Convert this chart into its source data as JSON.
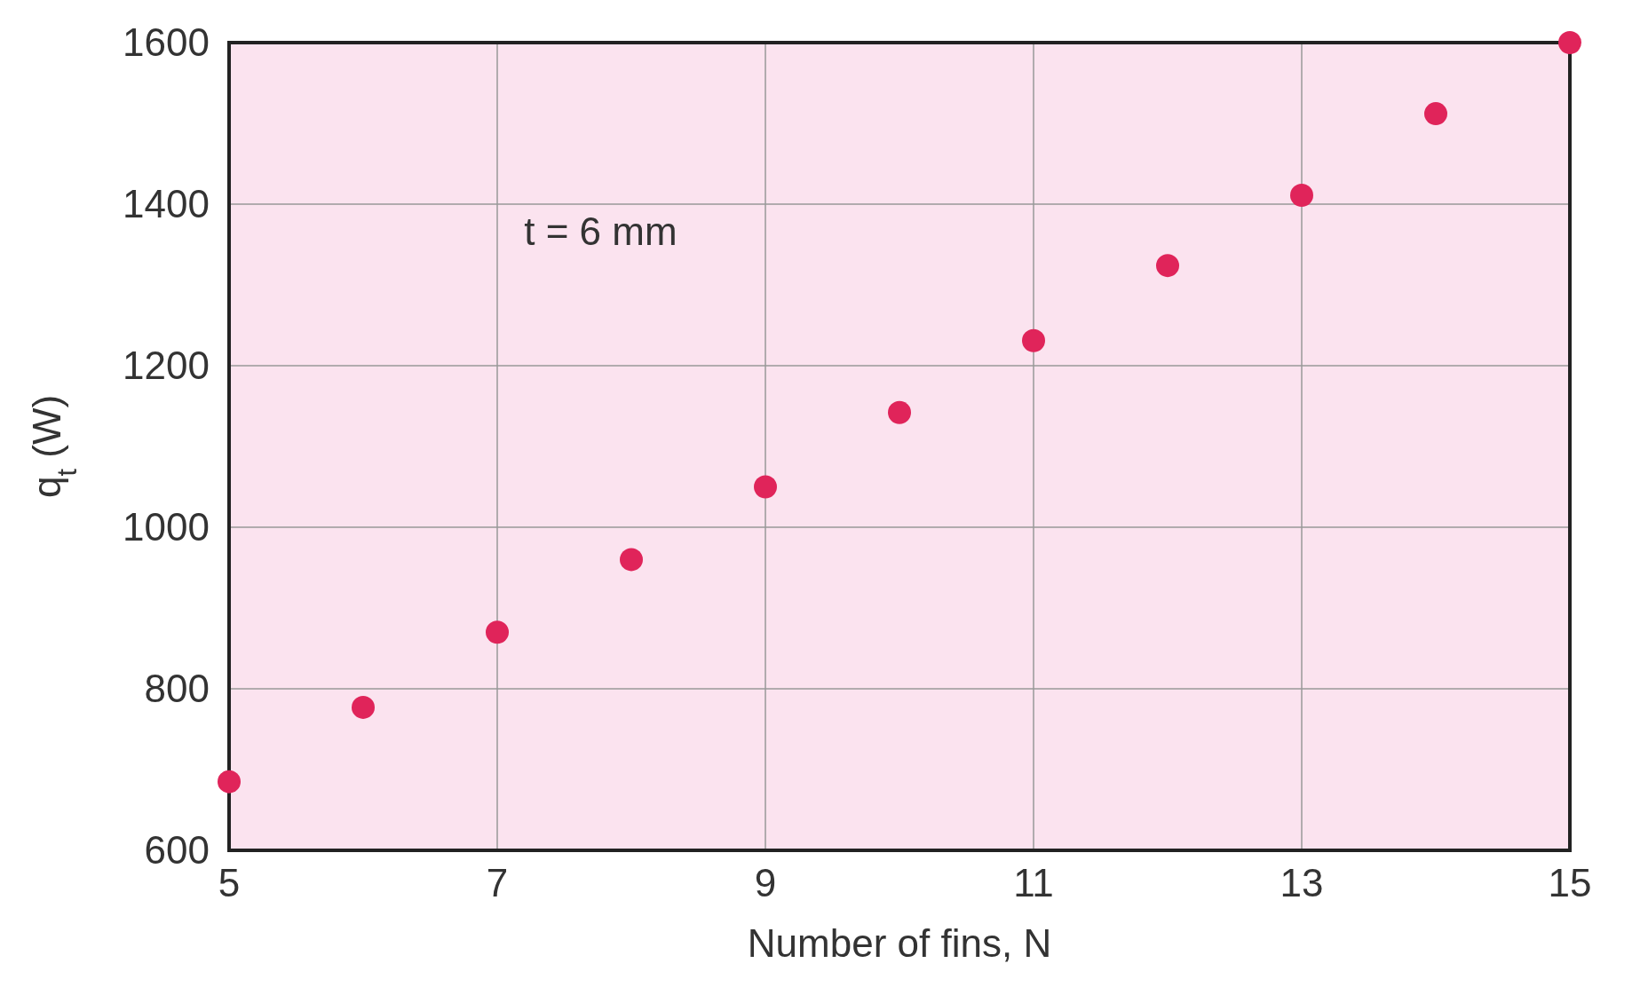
{
  "chart_data": {
    "type": "scatter",
    "xlabel": "Number of fins, N",
    "ylabel": "q$_{t}$ (W)",
    "x": [
      5,
      6,
      7,
      8,
      9,
      10,
      11,
      12,
      13,
      14,
      15
    ],
    "series": [
      {
        "color": "#e0245a",
        "values": [
          685,
          777,
          870,
          960,
          1050,
          1142,
          1231,
          1324,
          1411,
          1512,
          1600
        ]
      }
    ],
    "xlim": [
      5,
      15
    ],
    "xticks": [
      5,
      7,
      9,
      11,
      13,
      15
    ],
    "ylim": [
      600,
      1600
    ],
    "yticks": [
      600,
      800,
      1000,
      1200,
      1400,
      1600
    ],
    "grid": true,
    "marker": "circle",
    "annotations": [
      "t = 6 mm"
    ]
  }
}
